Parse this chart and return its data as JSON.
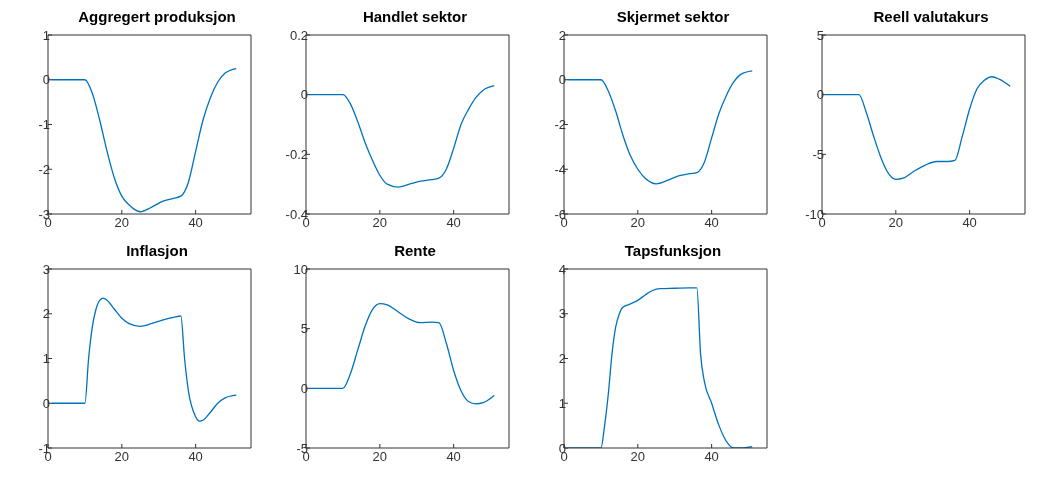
{
  "chart_data": [
    {
      "type": "line",
      "title": "Aggregert produksjon",
      "x": [
        1,
        5,
        10,
        12,
        14,
        16,
        18,
        20,
        22,
        25,
        28,
        31,
        34,
        36,
        38,
        40,
        42,
        44,
        46,
        48,
        51
      ],
      "series": [
        {
          "color": "#0072bd",
          "values": [
            0,
            0,
            0,
            -0.3,
            -0.9,
            -1.6,
            -2.2,
            -2.6,
            -2.8,
            -2.95,
            -2.85,
            -2.72,
            -2.65,
            -2.6,
            -2.3,
            -1.6,
            -0.9,
            -0.4,
            -0.05,
            0.15,
            0.25
          ]
        }
      ],
      "xlim": [
        0,
        55
      ],
      "xticks": [
        0,
        20,
        40
      ],
      "ylim": [
        -3,
        1
      ],
      "yticks": [
        -3,
        -2,
        -1,
        0,
        1
      ],
      "grid": false
    },
    {
      "type": "line",
      "title": "Handlet sektor",
      "x": [
        1,
        5,
        10,
        12,
        14,
        16,
        18,
        20,
        22,
        25,
        28,
        31,
        34,
        36,
        38,
        40,
        42,
        44,
        46,
        48,
        51
      ],
      "series": [
        {
          "color": "#0072bd",
          "values": [
            0,
            0,
            0,
            -0.03,
            -0.09,
            -0.16,
            -0.22,
            -0.27,
            -0.3,
            -0.31,
            -0.3,
            -0.29,
            -0.285,
            -0.28,
            -0.25,
            -0.18,
            -0.1,
            -0.05,
            -0.01,
            0.015,
            0.03
          ]
        }
      ],
      "xlim": [
        0,
        55
      ],
      "xticks": [
        0,
        20,
        40
      ],
      "ylim": [
        -0.4,
        0.2
      ],
      "yticks": [
        -0.4,
        -0.2,
        0,
        0.2
      ],
      "grid": false
    },
    {
      "type": "line",
      "title": "Skjermet sektor",
      "x": [
        1,
        5,
        10,
        12,
        14,
        16,
        18,
        20,
        22,
        25,
        28,
        31,
        34,
        36,
        38,
        40,
        42,
        44,
        46,
        48,
        51
      ],
      "series": [
        {
          "color": "#0072bd",
          "values": [
            0,
            0,
            0,
            -0.5,
            -1.4,
            -2.5,
            -3.4,
            -4.0,
            -4.4,
            -4.65,
            -4.5,
            -4.3,
            -4.2,
            -4.15,
            -3.7,
            -2.6,
            -1.5,
            -0.7,
            -0.1,
            0.25,
            0.4
          ]
        }
      ],
      "xlim": [
        0,
        55
      ],
      "xticks": [
        0,
        20,
        40
      ],
      "ylim": [
        -6,
        2
      ],
      "yticks": [
        -6,
        -4,
        -2,
        0,
        2
      ],
      "grid": false
    },
    {
      "type": "line",
      "title": "Reell valutakurs",
      "x": [
        1,
        5,
        10,
        12,
        14,
        16,
        18,
        20,
        22,
        25,
        28,
        31,
        34,
        36,
        38,
        40,
        42,
        44,
        46,
        48,
        51
      ],
      "series": [
        {
          "color": "#0072bd",
          "values": [
            0,
            0,
            0,
            -1.5,
            -3.5,
            -5.3,
            -6.6,
            -7.1,
            -7.0,
            -6.4,
            -5.9,
            -5.6,
            -5.6,
            -5.5,
            -3.5,
            -1.2,
            0.5,
            1.2,
            1.5,
            1.3,
            0.7
          ]
        }
      ],
      "xlim": [
        0,
        55
      ],
      "xticks": [
        0,
        20,
        40
      ],
      "ylim": [
        -10,
        5
      ],
      "yticks": [
        -10,
        -5,
        0,
        5
      ],
      "grid": false
    },
    {
      "type": "line",
      "title": "Inflasjon",
      "x": [
        1,
        5,
        10,
        11,
        12,
        13,
        14,
        15,
        16,
        18,
        20,
        22,
        25,
        28,
        31,
        34,
        36,
        37,
        38,
        40,
        41,
        42,
        44,
        46,
        48,
        51
      ],
      "series": [
        {
          "color": "#0072bd",
          "values": [
            0,
            0,
            0,
            1.0,
            1.7,
            2.1,
            2.3,
            2.35,
            2.3,
            2.1,
            1.9,
            1.78,
            1.72,
            1.78,
            1.86,
            1.92,
            1.95,
            1.0,
            0.3,
            -0.3,
            -0.4,
            -0.38,
            -0.2,
            0,
            0.12,
            0.18
          ]
        }
      ],
      "xlim": [
        0,
        55
      ],
      "xticks": [
        0,
        20,
        40
      ],
      "ylim": [
        -1,
        3
      ],
      "yticks": [
        -1,
        0,
        1,
        2,
        3
      ],
      "grid": false
    },
    {
      "type": "line",
      "title": "Rente",
      "x": [
        1,
        5,
        10,
        12,
        14,
        16,
        18,
        20,
        22,
        25,
        28,
        31,
        34,
        36,
        38,
        40,
        42,
        44,
        46,
        48,
        51
      ],
      "series": [
        {
          "color": "#0072bd",
          "values": [
            0,
            0,
            0,
            1.2,
            3.2,
            5.2,
            6.6,
            7.1,
            7.0,
            6.4,
            5.8,
            5.5,
            5.55,
            5.5,
            3.8,
            1.5,
            -0.2,
            -1.1,
            -1.3,
            -1.2,
            -0.6
          ]
        }
      ],
      "xlim": [
        0,
        55
      ],
      "xticks": [
        0,
        20,
        40
      ],
      "ylim": [
        -5,
        10
      ],
      "yticks": [
        -5,
        0,
        5,
        10
      ],
      "grid": false
    },
    {
      "type": "line",
      "title": "Tapsfunksjon",
      "x": [
        1,
        5,
        10,
        11,
        12,
        13,
        14,
        15,
        16,
        18,
        20,
        22,
        24,
        26,
        30,
        34,
        36,
        37,
        38,
        40,
        42,
        44,
        46,
        48,
        51
      ],
      "series": [
        {
          "color": "#0072bd",
          "values": [
            0,
            0,
            0,
            0.5,
            1.2,
            2.1,
            2.7,
            3.0,
            3.15,
            3.22,
            3.3,
            3.42,
            3.52,
            3.56,
            3.57,
            3.58,
            3.58,
            2.1,
            1.5,
            1.0,
            0.5,
            0.15,
            0,
            0,
            0.03
          ]
        }
      ],
      "xlim": [
        0,
        55
      ],
      "xticks": [
        0,
        20,
        40
      ],
      "ylim": [
        0,
        4
      ],
      "yticks": [
        0,
        1,
        2,
        3,
        4
      ],
      "grid": false
    }
  ]
}
